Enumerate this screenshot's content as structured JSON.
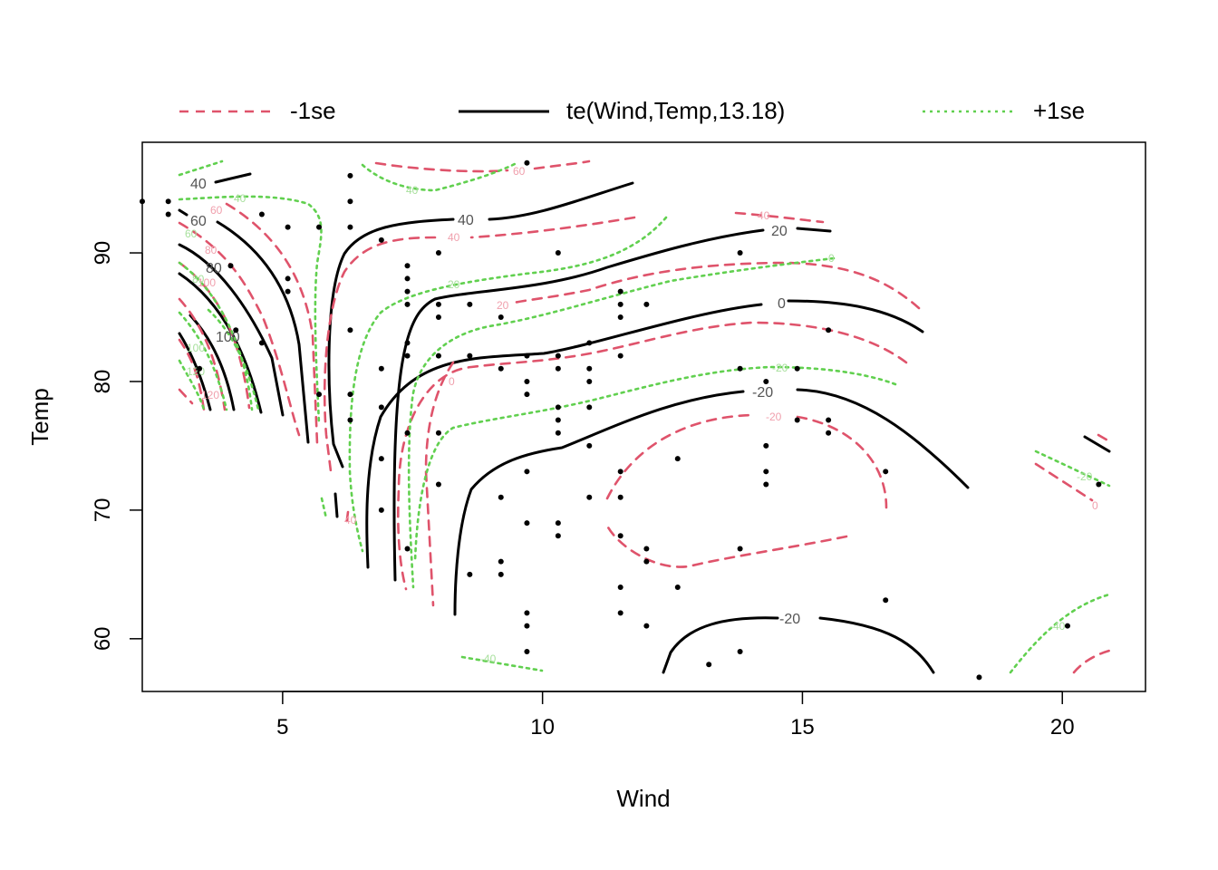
{
  "chart_data": {
    "type": "contour",
    "title": "",
    "xlabel": "Wind",
    "ylabel": "Temp",
    "xlim": [
      2.3,
      21.6
    ],
    "ylim": [
      55.9,
      98.6
    ],
    "xticks": [
      5,
      10,
      15,
      20
    ],
    "yticks": [
      60,
      70,
      80,
      90
    ],
    "legend": {
      "placement": "top",
      "entries": [
        {
          "label": "-1se",
          "style": "dashed",
          "color": "#DF536B"
        },
        {
          "label": "te(Wind,Temp,13.18)",
          "style": "solid",
          "color": "#000000"
        },
        {
          "label": "+1se",
          "style": "dotted",
          "color": "#61D04F"
        }
      ]
    },
    "points": [
      [
        2.3,
        94
      ],
      [
        2.8,
        93
      ],
      [
        2.8,
        94
      ],
      [
        3.4,
        81
      ],
      [
        4.0,
        89
      ],
      [
        4.1,
        84
      ],
      [
        4.6,
        83
      ],
      [
        4.6,
        93
      ],
      [
        5.1,
        87
      ],
      [
        5.1,
        88
      ],
      [
        5.1,
        92
      ],
      [
        5.7,
        79
      ],
      [
        5.7,
        92
      ],
      [
        6.3,
        77
      ],
      [
        6.3,
        79
      ],
      [
        6.3,
        84
      ],
      [
        6.3,
        92
      ],
      [
        6.3,
        94
      ],
      [
        6.3,
        96
      ],
      [
        6.9,
        70
      ],
      [
        6.9,
        74
      ],
      [
        6.9,
        78
      ],
      [
        6.9,
        81
      ],
      [
        6.9,
        91
      ],
      [
        7.4,
        67
      ],
      [
        7.4,
        76
      ],
      [
        7.4,
        82
      ],
      [
        7.4,
        83
      ],
      [
        7.4,
        86
      ],
      [
        7.4,
        87
      ],
      [
        7.4,
        88
      ],
      [
        7.4,
        89
      ],
      [
        8.0,
        72
      ],
      [
        8.0,
        76
      ],
      [
        8.0,
        82
      ],
      [
        8.0,
        85
      ],
      [
        8.0,
        86
      ],
      [
        8.0,
        90
      ],
      [
        8.6,
        65
      ],
      [
        8.6,
        82
      ],
      [
        8.6,
        86
      ],
      [
        9.2,
        65
      ],
      [
        9.2,
        66
      ],
      [
        9.2,
        71
      ],
      [
        9.2,
        81
      ],
      [
        9.2,
        85
      ],
      [
        9.7,
        59
      ],
      [
        9.7,
        61
      ],
      [
        9.7,
        62
      ],
      [
        9.7,
        69
      ],
      [
        9.7,
        73
      ],
      [
        9.7,
        79
      ],
      [
        9.7,
        80
      ],
      [
        9.7,
        82
      ],
      [
        9.7,
        97
      ],
      [
        10.3,
        68
      ],
      [
        10.3,
        69
      ],
      [
        10.3,
        76
      ],
      [
        10.3,
        77
      ],
      [
        10.3,
        78
      ],
      [
        10.3,
        81
      ],
      [
        10.3,
        82
      ],
      [
        10.3,
        90
      ],
      [
        10.9,
        71
      ],
      [
        10.9,
        75
      ],
      [
        10.9,
        78
      ],
      [
        10.9,
        80
      ],
      [
        10.9,
        81
      ],
      [
        10.9,
        83
      ],
      [
        11.5,
        62
      ],
      [
        11.5,
        64
      ],
      [
        11.5,
        68
      ],
      [
        11.5,
        71
      ],
      [
        11.5,
        73
      ],
      [
        11.5,
        82
      ],
      [
        11.5,
        85
      ],
      [
        11.5,
        86
      ],
      [
        11.5,
        87
      ],
      [
        12.0,
        61
      ],
      [
        12.0,
        66
      ],
      [
        12.0,
        67
      ],
      [
        12.0,
        86
      ],
      [
        12.6,
        64
      ],
      [
        12.6,
        74
      ],
      [
        13.2,
        58
      ],
      [
        13.8,
        59
      ],
      [
        13.8,
        67
      ],
      [
        13.8,
        81
      ],
      [
        13.8,
        90
      ],
      [
        14.3,
        72
      ],
      [
        14.3,
        73
      ],
      [
        14.3,
        75
      ],
      [
        14.3,
        80
      ],
      [
        14.9,
        77
      ],
      [
        14.9,
        81
      ],
      [
        15.5,
        76
      ],
      [
        15.5,
        77
      ],
      [
        15.5,
        84
      ],
      [
        16.6,
        63
      ],
      [
        16.6,
        73
      ],
      [
        18.4,
        57
      ],
      [
        20.1,
        61
      ],
      [
        20.7,
        72
      ]
    ],
    "contour_labels": {
      "fit": [
        "40",
        "60",
        "80",
        "100",
        "40",
        "20",
        "0",
        "-20",
        "-20"
      ],
      "minus1se": [
        "60",
        "80",
        "100",
        "120",
        "60",
        "40",
        "40",
        "20",
        "0",
        "-20",
        "0",
        "40"
      ],
      "plus1se": [
        "40",
        "40",
        "60",
        "80",
        "100",
        "120",
        "20",
        "0",
        "-20",
        "-20",
        "-40",
        "-40"
      ]
    }
  }
}
